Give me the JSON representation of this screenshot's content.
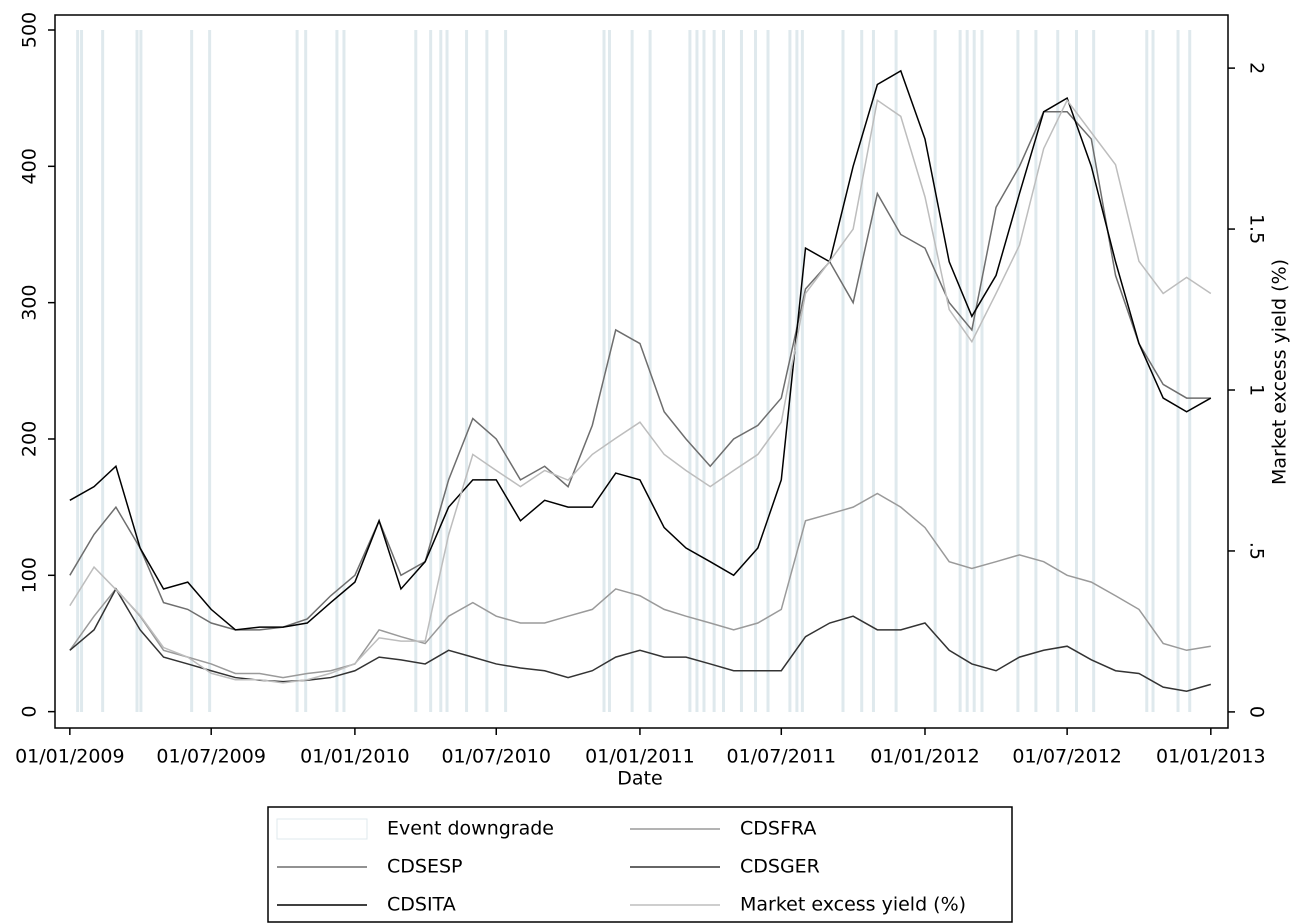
{
  "chart_data": {
    "type": "line",
    "x_label": "Date",
    "y2_label": "Market excess yield (%)",
    "xlim": [
      "2008-12-13",
      "2013-01-23"
    ],
    "xticks": [
      {
        "value": "2009-01-01",
        "label": "01/01/2009"
      },
      {
        "value": "2009-07-01",
        "label": "01/07/2009"
      },
      {
        "value": "2010-01-01",
        "label": "01/01/2010"
      },
      {
        "value": "2010-07-01",
        "label": "01/07/2010"
      },
      {
        "value": "2011-01-01",
        "label": "01/01/2011"
      },
      {
        "value": "2011-07-01",
        "label": "01/07/2011"
      },
      {
        "value": "2012-01-01",
        "label": "01/01/2012"
      },
      {
        "value": "2012-07-01",
        "label": "01/07/2012"
      },
      {
        "value": "2013-01-01",
        "label": "01/01/2013"
      }
    ],
    "ylim": [
      -12,
      511
    ],
    "yticks": [
      0,
      100,
      200,
      300,
      400,
      500
    ],
    "y2lim": [
      -0.05,
      2.165
    ],
    "y2ticks": [
      0,
      {
        "value": 0.5,
        "label": ".5"
      },
      1,
      1.5,
      2
    ],
    "events": {
      "name": "Event downgrade",
      "color": "#dfe9ed",
      "dates": [
        "2009-01-11",
        "2009-01-16",
        "2009-02-12",
        "2009-03-28",
        "2009-04-02",
        "2009-06-06",
        "2009-06-29",
        "2009-10-19",
        "2009-10-30",
        "2009-12-09",
        "2009-12-18",
        "2010-03-20",
        "2010-04-08",
        "2010-04-21",
        "2010-04-29",
        "2010-05-24",
        "2010-06-19",
        "2010-07-13",
        "2010-11-16",
        "2010-11-23",
        "2010-12-22",
        "2011-01-14",
        "2011-03-06",
        "2011-03-15",
        "2011-03-24",
        "2011-04-06",
        "2011-04-18",
        "2011-05-11",
        "2011-05-29",
        "2011-06-14",
        "2011-07-12",
        "2011-07-21",
        "2011-07-28",
        "2011-09-18",
        "2011-10-12",
        "2011-10-27",
        "2011-11-25",
        "2012-01-14",
        "2012-02-15",
        "2012-02-24",
        "2012-03-04",
        "2012-03-14",
        "2012-04-29",
        "2012-05-22",
        "2012-06-19",
        "2012-07-13",
        "2012-08-04",
        "2012-10-11",
        "2012-10-19",
        "2012-11-20",
        "2012-12-05"
      ]
    },
    "x": [
      "2009-01-01",
      "2009-02-01",
      "2009-03-01",
      "2009-04-01",
      "2009-05-01",
      "2009-06-01",
      "2009-07-01",
      "2009-08-01",
      "2009-09-01",
      "2009-10-01",
      "2009-11-01",
      "2009-12-01",
      "2010-01-01",
      "2010-02-01",
      "2010-03-01",
      "2010-04-01",
      "2010-05-01",
      "2010-06-01",
      "2010-07-01",
      "2010-08-01",
      "2010-09-01",
      "2010-10-01",
      "2010-11-01",
      "2010-12-01",
      "2011-01-01",
      "2011-02-01",
      "2011-03-01",
      "2011-04-01",
      "2011-05-01",
      "2011-06-01",
      "2011-07-01",
      "2011-08-01",
      "2011-09-01",
      "2011-10-01",
      "2011-11-01",
      "2011-12-01",
      "2012-01-01",
      "2012-02-01",
      "2012-03-01",
      "2012-04-01",
      "2012-05-01",
      "2012-06-01",
      "2012-07-01",
      "2012-08-01",
      "2012-09-01",
      "2012-10-01",
      "2012-11-01",
      "2012-12-01",
      "2013-01-01"
    ],
    "series": [
      {
        "name": "CDSESP",
        "color": "#6e6e6e",
        "values": [
          100,
          130,
          150,
          120,
          80,
          75,
          65,
          60,
          60,
          62,
          68,
          85,
          100,
          140,
          100,
          110,
          170,
          215,
          200,
          170,
          180,
          165,
          210,
          280,
          270,
          220,
          200,
          180,
          200,
          210,
          230,
          310,
          330,
          300,
          380,
          350,
          340,
          300,
          280,
          370,
          400,
          440,
          440,
          420,
          320,
          270,
          240,
          230,
          230
        ]
      },
      {
        "name": "CDSFRA",
        "color": "#9a9a9a",
        "values": [
          45,
          70,
          90,
          70,
          45,
          40,
          35,
          28,
          28,
          25,
          28,
          30,
          35,
          60,
          55,
          50,
          70,
          80,
          70,
          65,
          65,
          70,
          75,
          90,
          85,
          75,
          70,
          65,
          60,
          65,
          75,
          140,
          145,
          150,
          160,
          150,
          135,
          110,
          105,
          110,
          115,
          110,
          100,
          95,
          85,
          75,
          50,
          45,
          48
        ]
      },
      {
        "name": "CDSGER",
        "color": "#333333",
        "values": [
          45,
          60,
          90,
          60,
          40,
          35,
          30,
          25,
          23,
          22,
          23,
          25,
          30,
          40,
          38,
          35,
          45,
          40,
          35,
          32,
          30,
          25,
          30,
          40,
          45,
          40,
          40,
          35,
          30,
          30,
          30,
          55,
          65,
          70,
          60,
          60,
          65,
          45,
          35,
          30,
          40,
          45,
          48,
          38,
          30,
          28,
          18,
          15,
          20
        ]
      },
      {
        "name": "CDSITA",
        "color": "#000000",
        "values": [
          155,
          165,
          180,
          120,
          90,
          95,
          75,
          60,
          62,
          62,
          65,
          80,
          95,
          140,
          90,
          110,
          150,
          170,
          170,
          140,
          155,
          150,
          150,
          175,
          170,
          135,
          120,
          110,
          100,
          120,
          170,
          340,
          330,
          400,
          460,
          470,
          420,
          330,
          290,
          320,
          380,
          440,
          450,
          400,
          330,
          270,
          230,
          220,
          230
        ]
      },
      {
        "name": "Market excess yield (%)",
        "color": "#bdbdbd",
        "axis": "y2",
        "values": [
          0.33,
          0.45,
          0.38,
          0.3,
          0.2,
          0.17,
          0.12,
          0.1,
          0.1,
          0.09,
          0.1,
          0.12,
          0.15,
          0.23,
          0.22,
          0.22,
          0.55,
          0.8,
          0.75,
          0.7,
          0.75,
          0.72,
          0.8,
          0.85,
          0.9,
          0.8,
          0.75,
          0.7,
          0.75,
          0.8,
          0.9,
          1.3,
          1.4,
          1.5,
          1.9,
          1.85,
          1.6,
          1.25,
          1.15,
          1.3,
          1.45,
          1.75,
          1.9,
          1.8,
          1.7,
          1.4,
          1.3,
          1.35,
          1.3
        ]
      }
    ]
  }
}
